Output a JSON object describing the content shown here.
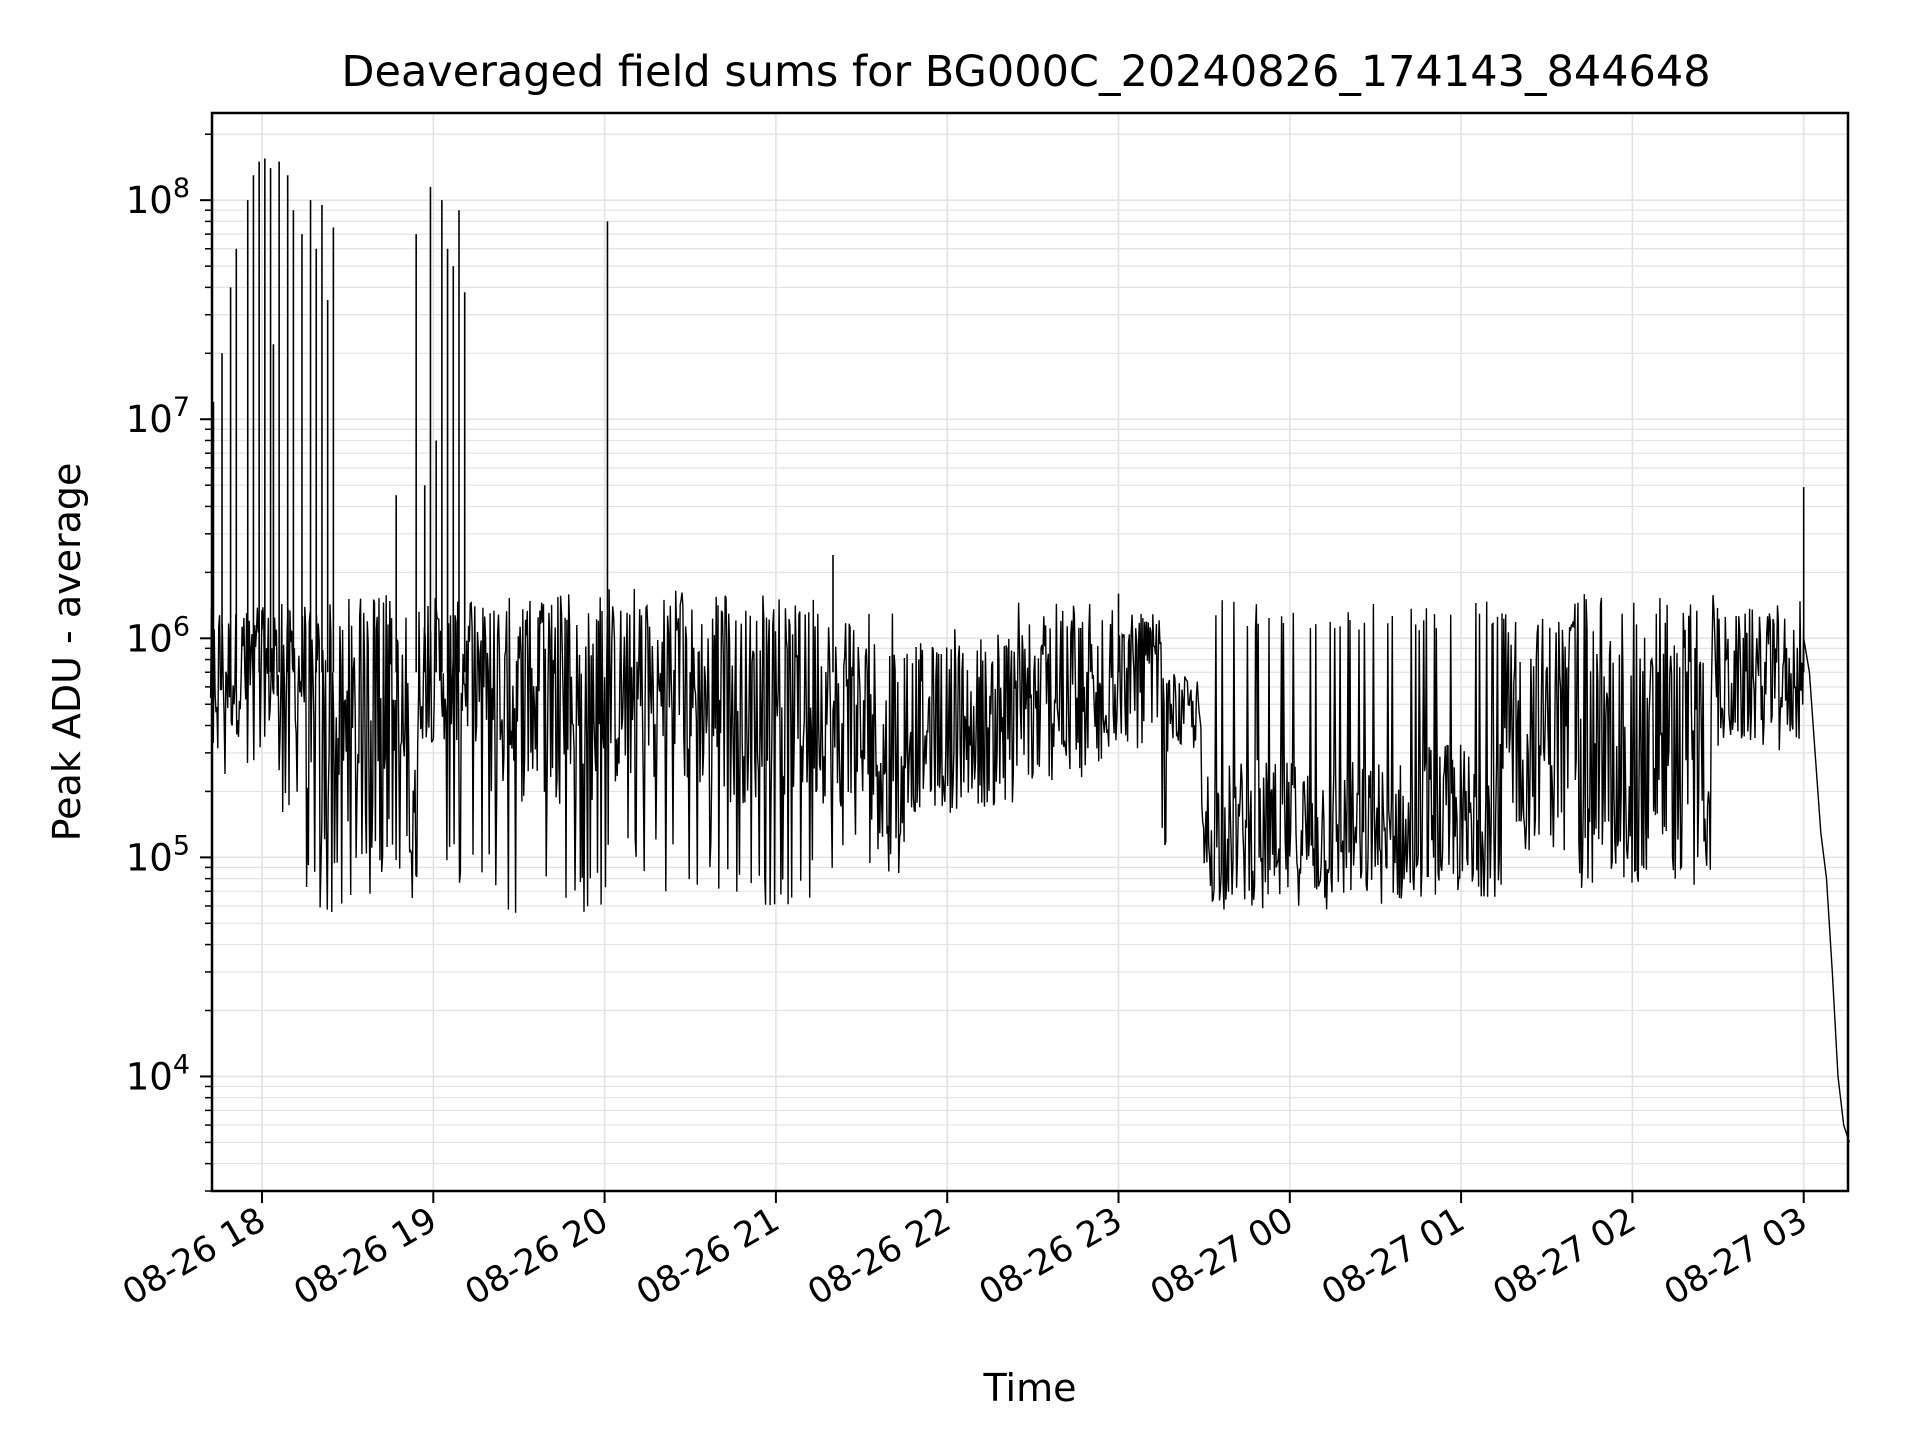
{
  "chart_data": {
    "type": "line",
    "title": "Deaveraged field sums for BG000C_20240826_174143_844648",
    "xlabel": "Time",
    "ylabel": "Peak ADU - average",
    "xlim": [
      "2024-08-26 17:42",
      "2024-08-27 03:16"
    ],
    "x_ticks": [
      "08-26 18",
      "08-26 19",
      "08-26 20",
      "08-26 21",
      "08-26 22",
      "08-26 23",
      "08-27 00",
      "08-27 01",
      "08-27 02",
      "08-27 03"
    ],
    "y_scale": "log",
    "ylim": [
      3000,
      250000000
    ],
    "y_ticks": [
      {
        "base": "10",
        "exp": "4",
        "value": 10000
      },
      {
        "base": "10",
        "exp": "5",
        "value": 100000
      },
      {
        "base": "10",
        "exp": "6",
        "value": 1000000
      },
      {
        "base": "10",
        "exp": "7",
        "value": 10000000
      },
      {
        "base": "10",
        "exp": "8",
        "value": 100000000
      }
    ],
    "grid": true,
    "line_color": "#000000",
    "series": [
      {
        "name": "",
        "segments": [
          {
            "start": "17:42",
            "end": "18:00",
            "median": 700000,
            "low": 200000,
            "high": 1500000
          },
          {
            "start": "18:00",
            "end": "18:15",
            "median": 700000,
            "low": 150000,
            "high": 1500000
          },
          {
            "start": "18:15",
            "end": "18:35",
            "median": 300000,
            "low": 55000,
            "high": 1600000
          },
          {
            "start": "18:35",
            "end": "18:55",
            "median": 350000,
            "low": 65000,
            "high": 1600000
          },
          {
            "start": "18:55",
            "end": "19:20",
            "median": 700000,
            "low": 70000,
            "high": 1600000
          },
          {
            "start": "19:20",
            "end": "20:00",
            "median": 500000,
            "low": 55000,
            "high": 1600000
          },
          {
            "start": "20:00",
            "end": "20:40",
            "median": 550000,
            "low": 70000,
            "high": 1700000
          },
          {
            "start": "20:40",
            "end": "21:20",
            "median": 500000,
            "low": 60000,
            "high": 1600000
          },
          {
            "start": "21:20",
            "end": "21:45",
            "median": 350000,
            "low": 80000,
            "high": 1300000
          },
          {
            "start": "21:45",
            "end": "22:25",
            "median": 400000,
            "low": 150000,
            "high": 1100000
          },
          {
            "start": "22:25",
            "end": "22:55",
            "median": 500000,
            "low": 200000,
            "high": 1500000
          },
          {
            "start": "22:55",
            "end": "23:15",
            "median": 650000,
            "low": 300000,
            "high": 1400000
          },
          {
            "start": "23:15",
            "end": "23:30",
            "median": 450000,
            "low": 100000,
            "high": 700000
          },
          {
            "start": "23:30",
            "end": "00:45",
            "median": 130000,
            "low": 55000,
            "high": 1500000
          },
          {
            "start": "00:45",
            "end": "01:15",
            "median": 150000,
            "low": 60000,
            "high": 1500000
          },
          {
            "start": "01:15",
            "end": "01:40",
            "median": 400000,
            "low": 100000,
            "high": 1500000
          },
          {
            "start": "01:40",
            "end": "02:30",
            "median": 300000,
            "low": 70000,
            "high": 1600000
          },
          {
            "start": "02:30",
            "end": "03:00",
            "median": 650000,
            "low": 300000,
            "high": 1500000
          }
        ],
        "spikes": [
          {
            "t": "17:43",
            "v": 12000000
          },
          {
            "t": "17:46",
            "v": 20000000
          },
          {
            "t": "17:49",
            "v": 40000000
          },
          {
            "t": "17:51",
            "v": 60000000
          },
          {
            "t": "17:55",
            "v": 100000000
          },
          {
            "t": "17:57",
            "v": 130000000
          },
          {
            "t": "17:59",
            "v": 150000000
          },
          {
            "t": "18:01",
            "v": 155000000
          },
          {
            "t": "18:03",
            "v": 140000000
          },
          {
            "t": "18:04",
            "v": 22000000
          },
          {
            "t": "18:06",
            "v": 150000000
          },
          {
            "t": "18:09",
            "v": 130000000
          },
          {
            "t": "18:11",
            "v": 90000000
          },
          {
            "t": "18:14",
            "v": 70000000
          },
          {
            "t": "18:17",
            "v": 100000000
          },
          {
            "t": "18:19",
            "v": 60000000
          },
          {
            "t": "18:21",
            "v": 95000000
          },
          {
            "t": "18:23",
            "v": 35000000
          },
          {
            "t": "18:25",
            "v": 75000000
          },
          {
            "t": "18:47",
            "v": 4500000
          },
          {
            "t": "18:54",
            "v": 70000000
          },
          {
            "t": "18:57",
            "v": 5000000
          },
          {
            "t": "18:59",
            "v": 115000000
          },
          {
            "t": "19:01",
            "v": 8000000
          },
          {
            "t": "19:03",
            "v": 100000000
          },
          {
            "t": "19:05",
            "v": 60000000
          },
          {
            "t": "19:07",
            "v": 50000000
          },
          {
            "t": "19:09",
            "v": 90000000
          },
          {
            "t": "19:11",
            "v": 38000000
          },
          {
            "t": "20:01",
            "v": 80000000
          },
          {
            "t": "21:20",
            "v": 2400000
          },
          {
            "t": "23:00",
            "v": 1600000
          },
          {
            "t": "03:00",
            "v": 4900000
          }
        ],
        "tail": [
          {
            "t": "03:00",
            "v": 1000000
          },
          {
            "t": "03:02",
            "v": 700000
          },
          {
            "t": "03:04",
            "v": 300000
          },
          {
            "t": "03:06",
            "v": 130000
          },
          {
            "t": "03:08",
            "v": 80000
          },
          {
            "t": "03:10",
            "v": 30000
          },
          {
            "t": "03:12",
            "v": 10000
          },
          {
            "t": "03:14",
            "v": 6000
          },
          {
            "t": "03:16",
            "v": 5000
          }
        ]
      }
    ]
  }
}
